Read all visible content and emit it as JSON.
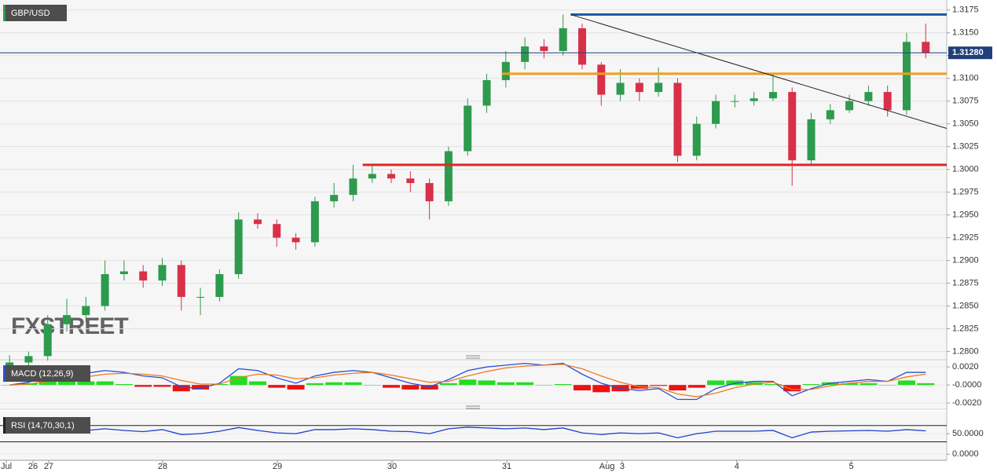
{
  "chart_data": [
    {
      "type": "candlestick",
      "title": "GBP/USD",
      "watermark": "FXSTREET",
      "up_color": "#2e9a4e",
      "down_color": "#d9304a",
      "open": [
        1.278,
        1.2788,
        1.2795,
        1.283,
        1.284,
        1.285,
        1.2885,
        1.2888,
        1.2878,
        1.2895,
        1.286,
        1.286,
        1.2885,
        1.2945,
        1.294,
        1.2925,
        1.292,
        1.2965,
        1.2972,
        1.299,
        1.2995,
        1.299,
        1.2985,
        1.2965,
        1.302,
        1.307,
        1.3098,
        1.3118,
        1.3135,
        1.313,
        1.3155,
        1.3115,
        1.3082,
        1.3095,
        1.3085,
        1.3095,
        1.3015,
        1.305,
        1.3075,
        1.3075,
        1.3078,
        1.3085,
        1.301,
        1.3055,
        1.3065,
        1.3075,
        1.3085,
        1.3065,
        1.314
      ],
      "high": [
        1.2796,
        1.28,
        1.284,
        1.2858,
        1.286,
        1.29,
        1.29,
        1.2895,
        1.2903,
        1.29,
        1.287,
        1.289,
        1.2953,
        1.2952,
        1.2945,
        1.293,
        1.297,
        1.2985,
        1.3005,
        1.3005,
        1.3,
        1.2998,
        1.299,
        1.3025,
        1.3078,
        1.3105,
        1.313,
        1.3145,
        1.3143,
        1.317,
        1.316,
        1.3118,
        1.311,
        1.31,
        1.3112,
        1.31,
        1.3058,
        1.3082,
        1.3082,
        1.3085,
        1.3105,
        1.309,
        1.3062,
        1.3072,
        1.3082,
        1.3092,
        1.3092,
        1.315,
        1.316
      ],
      "low": [
        1.2775,
        1.2782,
        1.279,
        1.2822,
        1.2832,
        1.2845,
        1.2878,
        1.287,
        1.2872,
        1.2845,
        1.284,
        1.2855,
        1.288,
        1.2935,
        1.2915,
        1.2912,
        1.2915,
        1.2958,
        1.2965,
        1.2985,
        1.2985,
        1.2975,
        1.2945,
        1.296,
        1.3015,
        1.3062,
        1.309,
        1.311,
        1.3122,
        1.3125,
        1.311,
        1.307,
        1.3075,
        1.3075,
        1.308,
        1.3008,
        1.301,
        1.3045,
        1.3068,
        1.307,
        1.3075,
        1.2982,
        1.3005,
        1.305,
        1.3062,
        1.307,
        1.3058,
        1.306,
        1.3122
      ],
      "close": [
        1.2788,
        1.2795,
        1.283,
        1.284,
        1.285,
        1.2885,
        1.2888,
        1.2878,
        1.2895,
        1.286,
        1.286,
        1.2885,
        1.2945,
        1.294,
        1.2925,
        1.292,
        1.2965,
        1.2972,
        1.299,
        1.2995,
        1.299,
        1.2985,
        1.2965,
        1.302,
        1.307,
        1.3098,
        1.3118,
        1.3135,
        1.313,
        1.3155,
        1.3115,
        1.3082,
        1.3095,
        1.3085,
        1.3095,
        1.3015,
        1.305,
        1.3075,
        1.3075,
        1.3078,
        1.3085,
        1.301,
        1.3055,
        1.3065,
        1.3075,
        1.3085,
        1.3065,
        1.314,
        1.3128
      ],
      "levels": [
        {
          "value": 1.317,
          "x_start": 29.4,
          "color": "#1f5aa6"
        },
        {
          "value": 1.3105,
          "x_start": 25.8,
          "color": "#f39c1e"
        },
        {
          "value": 1.3005,
          "x_start": 18.5,
          "color": "#e52421"
        }
      ],
      "trendline": {
        "x": [
          29.4,
          49.1
        ],
        "y": [
          1.317,
          1.3045
        ],
        "color": "#222"
      },
      "current": {
        "value": 1.3128,
        "label": "1.31280"
      },
      "xlim": [
        -0.5,
        49.1
      ],
      "ylim": [
        1.2791,
        1.3186
      ],
      "grid": true,
      "yticks": [
        {
          "value": 1.3175,
          "label": "1.3175"
        },
        {
          "value": 1.315,
          "label": "1.3150"
        },
        {
          "value": 1.3125,
          "label": "1.3125"
        },
        {
          "value": 1.31,
          "label": "1.3100"
        },
        {
          "value": 1.3075,
          "label": "1.3075"
        },
        {
          "value": 1.305,
          "label": "1.3050"
        },
        {
          "value": 1.3025,
          "label": "1.3025"
        },
        {
          "value": 1.3,
          "label": "1.3000"
        },
        {
          "value": 1.2975,
          "label": "1.2975"
        },
        {
          "value": 1.295,
          "label": "1.2950"
        },
        {
          "value": 1.2925,
          "label": "1.2925"
        },
        {
          "value": 1.29,
          "label": "1.2900"
        },
        {
          "value": 1.2875,
          "label": "1.2875"
        },
        {
          "value": 1.285,
          "label": "1.2850"
        },
        {
          "value": 1.2825,
          "label": "1.2825"
        },
        {
          "value": 1.28,
          "label": "1.2800"
        }
      ]
    },
    {
      "type": "macd",
      "title": "MACD (12,26,9)",
      "series": [
        {
          "name": "MACD",
          "color": "#2a4fd6",
          "values": [
            0.0,
            0.0003,
            0.001,
            0.0012,
            0.0013,
            0.0016,
            0.0014,
            0.001,
            0.0008,
            -0.0002,
            -0.0004,
            0.0002,
            0.0018,
            0.0016,
            0.0008,
            0.0002,
            0.001,
            0.0014,
            0.0016,
            0.0014,
            0.0008,
            0.0002,
            -0.0002,
            0.0006,
            0.0016,
            0.002,
            0.0022,
            0.0024,
            0.0022,
            0.0024,
            0.0012,
            0.0002,
            -0.0004,
            -0.0006,
            -0.0004,
            -0.0016,
            -0.0016,
            -0.0004,
            0.0002,
            0.0004,
            0.0004,
            -0.0012,
            -0.0004,
            0.0002,
            0.0004,
            0.0006,
            0.0004,
            0.0014,
            0.0014
          ]
        },
        {
          "name": "Signal",
          "color": "#f07a1e",
          "values": [
            0.0,
            0.0001,
            0.0004,
            0.0007,
            0.0009,
            0.0012,
            0.0013,
            0.0012,
            0.001,
            0.0005,
            0.0001,
            0.0001,
            0.0008,
            0.0012,
            0.0011,
            0.0007,
            0.0008,
            0.0011,
            0.0013,
            0.0014,
            0.0011,
            0.0007,
            0.0003,
            0.0004,
            0.001,
            0.0015,
            0.0019,
            0.0021,
            0.0022,
            0.0023,
            0.0018,
            0.001,
            0.0003,
            -0.0002,
            -0.0003,
            -0.001,
            -0.0013,
            -0.0009,
            -0.0003,
            0.0001,
            0.0003,
            -0.0005,
            -0.0005,
            -0.0001,
            0.0002,
            0.0004,
            0.0004,
            0.0009,
            0.0012
          ]
        }
      ],
      "histogram": [
        0,
        0.0002,
        0.0006,
        0.0005,
        0.0004,
        0.0004,
        0.0001,
        -0.0002,
        -0.0002,
        -0.0007,
        -0.0005,
        0.0001,
        0.001,
        0.0004,
        -0.0003,
        -0.0005,
        0.0002,
        0.0003,
        0.0003,
        0.0,
        -0.0003,
        -0.0005,
        -0.0005,
        0.0002,
        0.0006,
        0.0005,
        0.0003,
        0.0003,
        0.0,
        0.0001,
        -0.0006,
        -0.0008,
        -0.0007,
        -0.0004,
        -0.0001,
        -0.0006,
        -0.0003,
        0.0005,
        0.0005,
        0.0003,
        0.0001,
        -0.0007,
        0.0001,
        0.0003,
        0.0002,
        0.0002,
        0.0,
        0.0005,
        0.0002
      ],
      "hist_up_color": "#22dd22",
      "hist_down_color": "#ee1111",
      "xlim": [
        -0.5,
        49.1
      ],
      "ylim": [
        -0.0026,
        0.0028
      ],
      "yticks": [
        {
          "value": 0.002,
          "label": "0.0020"
        },
        {
          "value": 0,
          "label": "-0.0000"
        },
        {
          "value": -0.002,
          "label": "-0.0020"
        }
      ]
    },
    {
      "type": "rsi",
      "title": "RSI (14,70,30,1)",
      "series": [
        {
          "name": "RSI",
          "color": "#1d3fd0",
          "values": [
            55,
            58,
            62,
            60,
            58,
            62,
            58,
            55,
            60,
            48,
            50,
            56,
            65,
            58,
            52,
            50,
            60,
            60,
            62,
            60,
            56,
            55,
            50,
            62,
            66,
            64,
            62,
            64,
            60,
            64,
            52,
            48,
            52,
            50,
            52,
            40,
            50,
            56,
            56,
            56,
            58,
            40,
            54,
            56,
            57,
            58,
            56,
            60,
            57
          ]
        }
      ],
      "bands": [
        70,
        30
      ],
      "xlim": [
        -0.5,
        49.1
      ],
      "ylim": [
        -15,
        104
      ],
      "yticks": [
        {
          "value": 50,
          "label": "50.0000"
        },
        {
          "value": 0,
          "label": "0.0000"
        }
      ],
      "xticks": [
        {
          "value": -0.17,
          "label": "Jul"
        },
        {
          "value": 1.23,
          "label": "26"
        },
        {
          "value": 2.05,
          "label": "27"
        },
        {
          "value": 8.02,
          "label": "28"
        },
        {
          "value": 14.03,
          "label": "29"
        },
        {
          "value": 20.04,
          "label": "30"
        },
        {
          "value": 26.05,
          "label": "31"
        },
        {
          "value": 31.3,
          "label": "Aug"
        },
        {
          "value": 32.1,
          "label": "3"
        },
        {
          "value": 38.1,
          "label": "4"
        },
        {
          "value": 44.1,
          "label": "5"
        }
      ]
    }
  ]
}
